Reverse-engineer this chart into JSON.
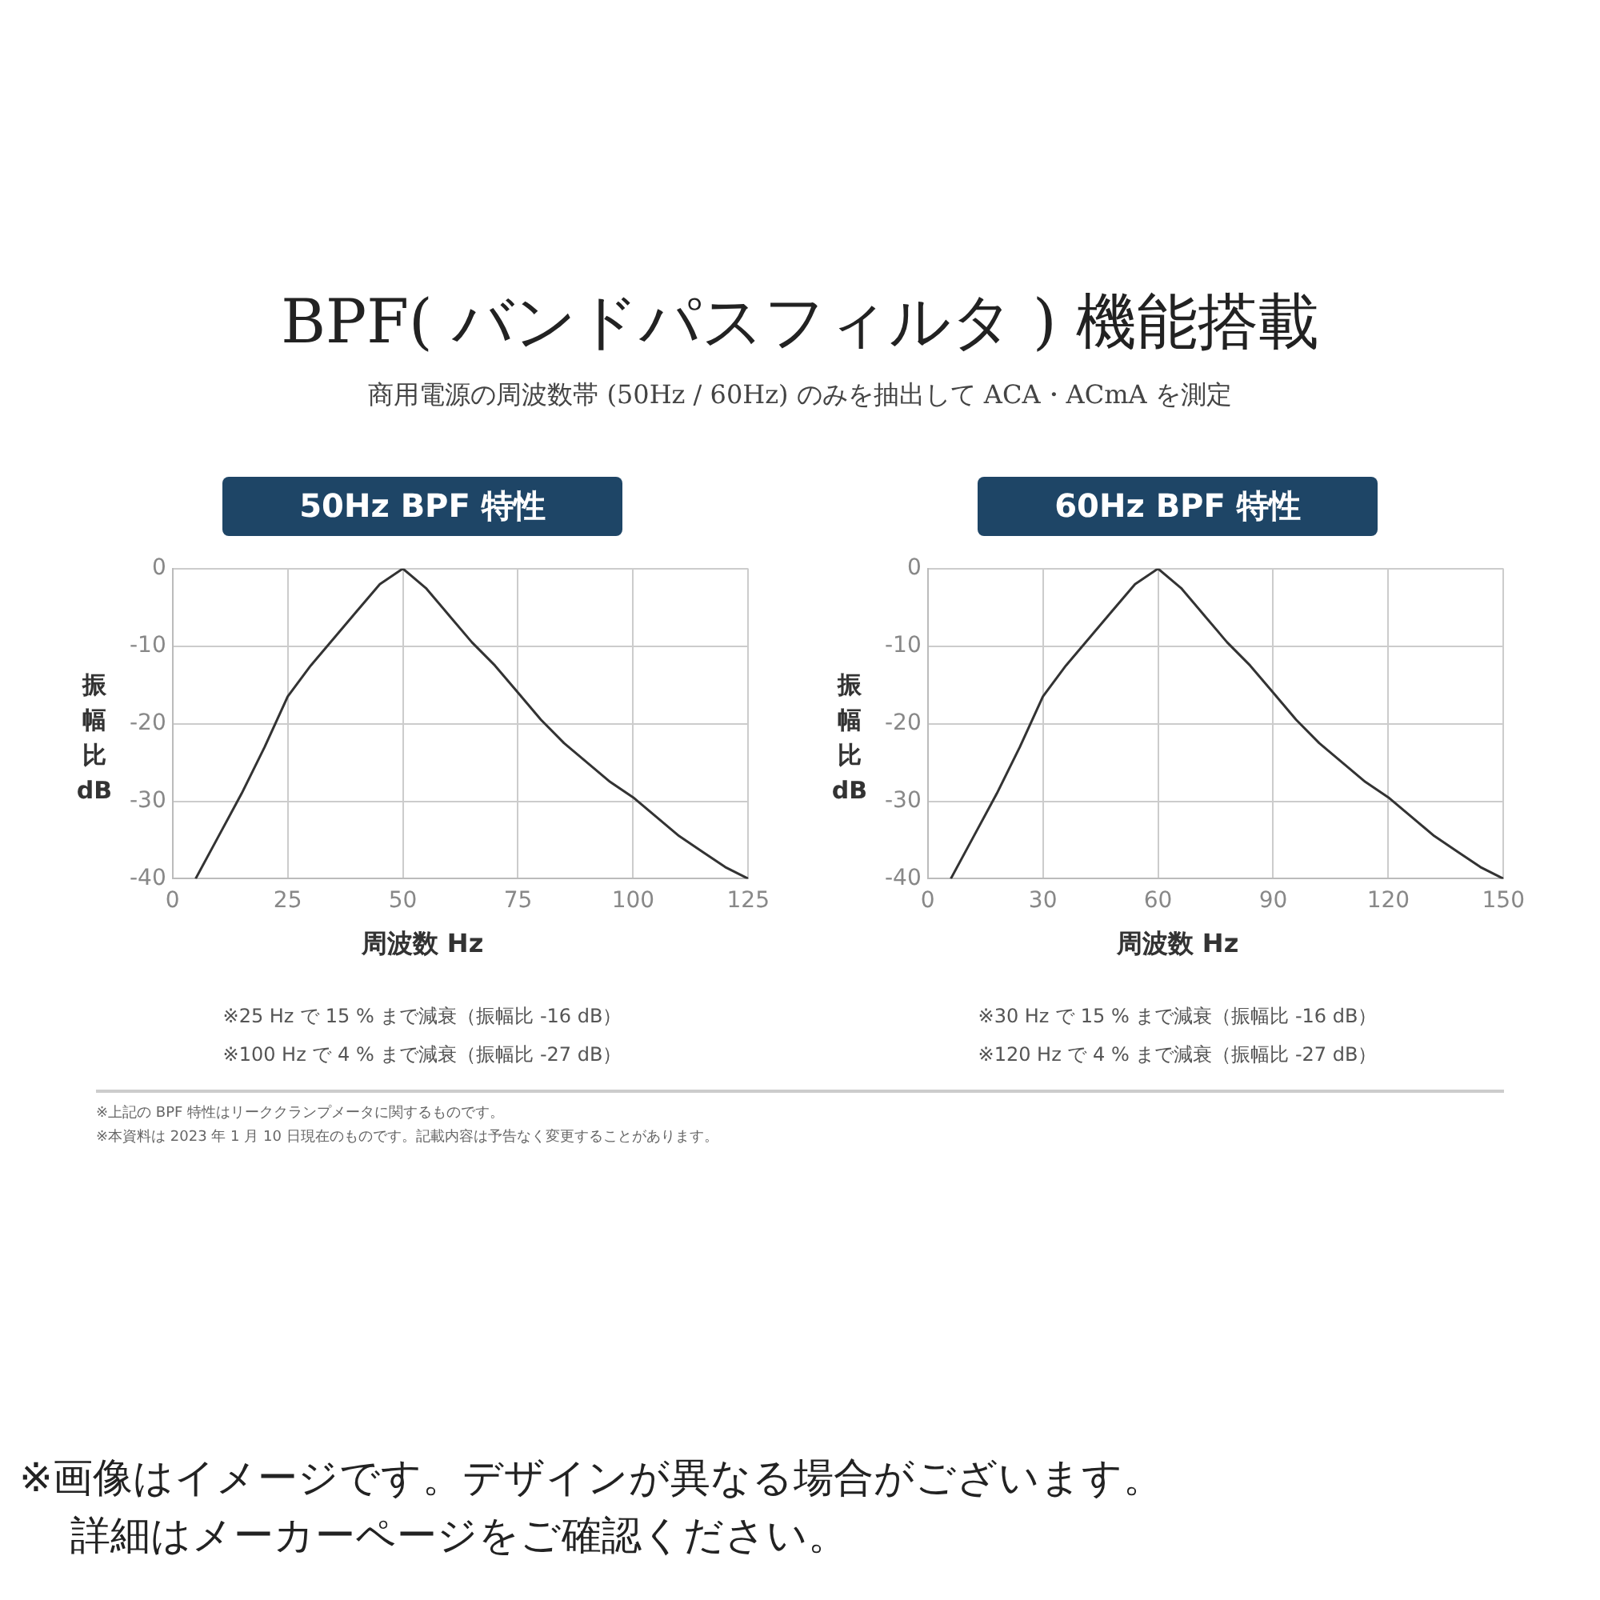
{
  "chart_data": [
    {
      "type": "line",
      "title": "50Hz BPF 特性",
      "xlabel": "周波数 Hz",
      "ylabel": "振幅比 dB",
      "xlim": [
        0,
        125
      ],
      "xticks": [
        0,
        25,
        50,
        75,
        100,
        125
      ],
      "ylim": [
        -40,
        0
      ],
      "yticks": [
        -40,
        -30,
        -20,
        -10,
        0
      ],
      "grid": true,
      "legend": false,
      "marker": "none",
      "line_style": "solid",
      "series": [
        {
          "color": "#333333",
          "x": [
            5,
            10,
            15,
            20,
            25,
            30,
            35,
            40,
            45,
            50,
            55,
            60,
            65,
            70,
            75,
            80,
            85,
            90,
            95,
            100,
            105,
            110,
            115,
            120,
            125
          ],
          "values": [
            -40,
            -34.5,
            -29,
            -23,
            -16.5,
            -12.5,
            -9,
            -5.5,
            -2,
            0,
            -2.5,
            -6,
            -9.5,
            -12.5,
            -16,
            -19.5,
            -22.5,
            -25,
            -27.5,
            -29.5,
            -32,
            -34.5,
            -36.5,
            -38.5,
            -40
          ]
        }
      ],
      "annotations": [
        "BPF( バンドパスフィルタ ) 機能搭載",
        "商用電源の周波数帯 (50Hz / 60Hz) のみを抽出して ACA・ACmA を測定",
        "※25 Hz で 15 % まで減衰（振幅比 -16 dB）",
        "※100 Hz で 4 % まで減衰（振幅比 -27 dB）"
      ]
    },
    {
      "type": "line",
      "title": "60Hz BPF 特性",
      "xlabel": "周波数 Hz",
      "ylabel": "振幅比 dB",
      "xlim": [
        0,
        150
      ],
      "xticks": [
        0,
        30,
        60,
        90,
        120,
        150
      ],
      "ylim": [
        -40,
        0
      ],
      "yticks": [
        -40,
        -30,
        -20,
        -10,
        0
      ],
      "grid": true,
      "legend": false,
      "marker": "none",
      "line_style": "solid",
      "series": [
        {
          "color": "#333333",
          "x": [
            6,
            12,
            18,
            24,
            30,
            36,
            42,
            48,
            54,
            60,
            66,
            72,
            78,
            84,
            90,
            96,
            102,
            108,
            114,
            120,
            126,
            132,
            138,
            144,
            150
          ],
          "values": [
            -40,
            -34.5,
            -29,
            -23,
            -16.5,
            -12.5,
            -9,
            -5.5,
            -2,
            0,
            -2.5,
            -6,
            -9.5,
            -12.5,
            -16,
            -19.5,
            -22.5,
            -25,
            -27.5,
            -29.5,
            -32,
            -34.5,
            -36.5,
            -38.5,
            -40
          ]
        }
      ],
      "annotations": [
        "※30 Hz で 15 % まで減衰（振幅比 -16 dB）",
        "※120 Hz で 4 % まで減衰（振幅比 -27 dB）",
        "※上記の BPF 特性はリーククランプメータに関するものです。",
        "※本資料は 2023 年 1 月 10 日現在のものです。記載内容は予告なく変更することがあります。",
        "※画像はイメージです。デザインが異なる場合がございます。",
        "詳細はメーカーページをご確認ください。"
      ]
    }
  ]
}
